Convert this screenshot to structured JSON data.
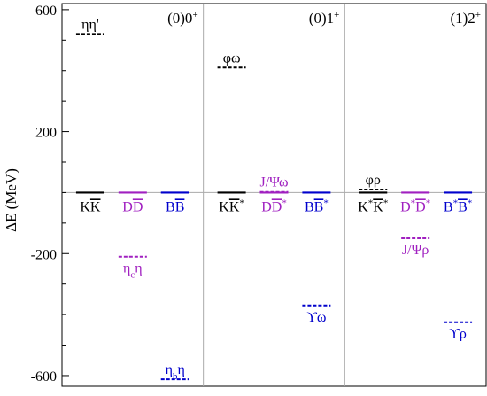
{
  "chart_data": {
    "type": "level-diagram",
    "ylabel": "ΔE (MeV)",
    "ylim": [
      -635,
      620
    ],
    "yticks": [
      600,
      200,
      -200,
      -600
    ],
    "y_minor_step": 100,
    "colors": {
      "strange": "#000000",
      "charm": "#a020c0",
      "bottom": "#0000cc",
      "divider": "#aaaaaa"
    },
    "panels": [
      {
        "title": "(0)0+",
        "title_sup": "+",
        "title_base": "(0)0",
        "columns": [
          {
            "flavor": "strange",
            "threshold": {
              "label": "KK̄",
              "value": 0
            },
            "levels": [
              {
                "label": "ηη'",
                "value": 520,
                "label_pos": "above"
              }
            ]
          },
          {
            "flavor": "charm",
            "threshold": {
              "label": "DD̄",
              "value": 0
            },
            "levels": [
              {
                "label": "ηcη",
                "value": -210,
                "label_pos": "below"
              }
            ]
          },
          {
            "flavor": "bottom",
            "threshold": {
              "label": "BB̄",
              "value": 0
            },
            "levels": [
              {
                "label": "ηbη",
                "value": -612,
                "label_pos": "above"
              }
            ]
          }
        ]
      },
      {
        "title": "(0)1+",
        "title_sup": "+",
        "title_base": "(0)1",
        "columns": [
          {
            "flavor": "strange",
            "threshold": {
              "label": "KK̄*",
              "value": 0
            },
            "levels": [
              {
                "label": "φω",
                "value": 410,
                "label_pos": "above"
              }
            ]
          },
          {
            "flavor": "charm",
            "threshold": {
              "label": "DD̄*",
              "value": 0
            },
            "levels": [
              {
                "label": "J/Ψω",
                "value": 2,
                "label_pos": "above"
              }
            ]
          },
          {
            "flavor": "bottom",
            "threshold": {
              "label": "BB̄*",
              "value": 0
            },
            "levels": [
              {
                "label": "ϒω",
                "value": -370,
                "label_pos": "below"
              }
            ]
          }
        ]
      },
      {
        "title": "(1)2+",
        "title_sup": "+",
        "title_base": "(1)2",
        "columns": [
          {
            "flavor": "strange",
            "threshold": {
              "label": "K*K̄*",
              "value": 0
            },
            "levels": [
              {
                "label": "φρ",
                "value": 10,
                "label_pos": "above"
              }
            ]
          },
          {
            "flavor": "charm",
            "threshold": {
              "label": "D*D̄*",
              "value": 0
            },
            "levels": [
              {
                "label": "J/Ψρ",
                "value": -150,
                "label_pos": "below"
              }
            ]
          },
          {
            "flavor": "bottom",
            "threshold": {
              "label": "B*B̄*",
              "value": 0
            },
            "levels": [
              {
                "label": "ϒρ",
                "value": -425,
                "label_pos": "below"
              }
            ]
          }
        ]
      }
    ],
    "label_parts": {
      "KK̄": [
        [
          "K",
          ""
        ],
        [
          "K",
          "bar"
        ]
      ],
      "DD̄": [
        [
          "D",
          ""
        ],
        [
          "D",
          "bar"
        ]
      ],
      "BB̄": [
        [
          "B",
          ""
        ],
        [
          "B",
          "bar"
        ]
      ],
      "KK̄*": [
        [
          "K",
          ""
        ],
        [
          "K",
          "bar"
        ],
        [
          "*",
          "sup"
        ]
      ],
      "DD̄*": [
        [
          "D",
          ""
        ],
        [
          "D",
          "bar"
        ],
        [
          "*",
          "sup"
        ]
      ],
      "BB̄*": [
        [
          "B",
          ""
        ],
        [
          "B",
          "bar"
        ],
        [
          "*",
          "sup"
        ]
      ],
      "K*K̄*": [
        [
          "K",
          ""
        ],
        [
          "*",
          "sup"
        ],
        [
          "K",
          "bar"
        ],
        [
          "*",
          "sup"
        ]
      ],
      "D*D̄*": [
        [
          "D",
          ""
        ],
        [
          "*",
          "sup"
        ],
        [
          "D",
          "bar"
        ],
        [
          "*",
          "sup"
        ]
      ],
      "B*B̄*": [
        [
          "B",
          ""
        ],
        [
          "*",
          "sup"
        ],
        [
          "B",
          "bar"
        ],
        [
          "*",
          "sup"
        ]
      ],
      "ηη'": [
        [
          "ηη'",
          ""
        ]
      ],
      "ηcη": [
        [
          "η",
          ""
        ],
        [
          "c",
          "sub"
        ],
        [
          "η",
          ""
        ]
      ],
      "ηbη": [
        [
          "η",
          ""
        ],
        [
          "b",
          "sub"
        ],
        [
          "η",
          ""
        ]
      ],
      "φω": [
        [
          "φω",
          ""
        ]
      ],
      "J/Ψω": [
        [
          "J/Ψω",
          ""
        ]
      ],
      "ϒω": [
        [
          "ϒω",
          ""
        ]
      ],
      "φρ": [
        [
          "φρ",
          ""
        ]
      ],
      "J/Ψρ": [
        [
          "J/Ψρ",
          ""
        ]
      ],
      "ϒρ": [
        [
          "ϒρ",
          ""
        ]
      ]
    }
  }
}
